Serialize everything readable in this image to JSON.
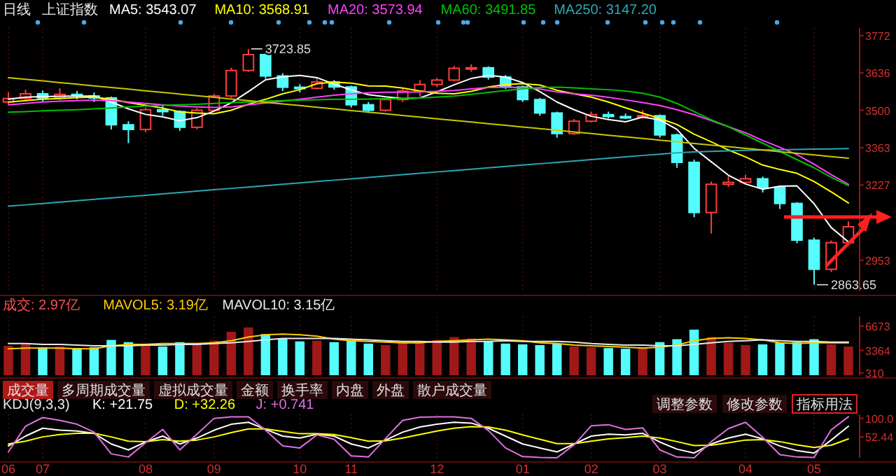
{
  "chart_data": [
    {
      "type": "candlestick",
      "title": "日线",
      "subtitle": "上证指数",
      "legend": "top left",
      "tick_labels": "y",
      "categories": [
        "06",
        null,
        "07",
        null,
        null,
        null,
        null,
        null,
        "08",
        null,
        null,
        null,
        "09",
        null,
        null,
        null,
        null,
        "10",
        null,
        null,
        "11",
        null,
        null,
        null,
        null,
        "12",
        null,
        null,
        null,
        null,
        "01",
        null,
        null,
        null,
        "02",
        null,
        null,
        null,
        "03",
        null,
        null,
        null,
        null,
        "04",
        null,
        null,
        null,
        "05",
        null,
        null
      ],
      "ohlc": [
        [
          3530,
          3565,
          3520,
          3543
        ],
        [
          3543,
          3575,
          3535,
          3560
        ],
        [
          3560,
          3572,
          3532,
          3545
        ],
        [
          3545,
          3580,
          3538,
          3558
        ],
        [
          3558,
          3570,
          3540,
          3552
        ],
        [
          3552,
          3565,
          3530,
          3545
        ],
        [
          3545,
          3550,
          3430,
          3447
        ],
        [
          3447,
          3460,
          3380,
          3430
        ],
        [
          3430,
          3510,
          3420,
          3502
        ],
        [
          3502,
          3520,
          3480,
          3495
        ],
        [
          3495,
          3500,
          3425,
          3438
        ],
        [
          3438,
          3508,
          3430,
          3500
        ],
        [
          3500,
          3560,
          3495,
          3552
        ],
        [
          3552,
          3655,
          3545,
          3645
        ],
        [
          3645,
          3723.85,
          3640,
          3703
        ],
        [
          3703,
          3710,
          3615,
          3625
        ],
        [
          3625,
          3635,
          3570,
          3584
        ],
        [
          3584,
          3595,
          3565,
          3580
        ],
        [
          3580,
          3615,
          3575,
          3603
        ],
        [
          3603,
          3610,
          3575,
          3585
        ],
        [
          3585,
          3590,
          3510,
          3520
        ],
        [
          3520,
          3530,
          3490,
          3500
        ],
        [
          3500,
          3545,
          3495,
          3539
        ],
        [
          3539,
          3578,
          3530,
          3570
        ],
        [
          3570,
          3610,
          3550,
          3594
        ],
        [
          3594,
          3618,
          3585,
          3610
        ],
        [
          3610,
          3662,
          3605,
          3653
        ],
        [
          3653,
          3668,
          3640,
          3655
        ],
        [
          3655,
          3660,
          3612,
          3621
        ],
        [
          3621,
          3628,
          3578,
          3585
        ],
        [
          3585,
          3590,
          3530,
          3539
        ],
        [
          3539,
          3545,
          3480,
          3490
        ],
        [
          3490,
          3495,
          3400,
          3415
        ],
        [
          3415,
          3468,
          3410,
          3460
        ],
        [
          3460,
          3495,
          3455,
          3484
        ],
        [
          3484,
          3495,
          3470,
          3477
        ],
        [
          3477,
          3488,
          3468,
          3475
        ],
        [
          3475,
          3500,
          3470,
          3480
        ],
        [
          3480,
          3485,
          3400,
          3410
        ],
        [
          3410,
          3415,
          3290,
          3310
        ],
        [
          3310,
          3320,
          3110,
          3127
        ],
        [
          3127,
          3240,
          3050,
          3230
        ],
        [
          3230,
          3260,
          3220,
          3237
        ],
        [
          3237,
          3265,
          3230,
          3250
        ],
        [
          3250,
          3258,
          3200,
          3218
        ],
        [
          3218,
          3225,
          3140,
          3160
        ],
        [
          3160,
          3165,
          3015,
          3026
        ],
        [
          3026,
          3035,
          2863.65,
          2920
        ],
        [
          2920,
          3025,
          2910,
          3017
        ],
        [
          3017,
          3095,
          3010,
          3075
        ]
      ],
      "colors": [
        "#ff3c3c",
        "#ff3c3c",
        "#54fcfc",
        "#ff3c3c",
        "#54fcfc",
        "#54fcfc",
        "#54fcfc",
        "#54fcfc",
        "#ff3c3c",
        "#54fcfc",
        "#54fcfc",
        "#ff3c3c",
        "#ff3c3c",
        "#ff3c3c",
        "#ff3c3c",
        "#54fcfc",
        "#54fcfc",
        "#54fcfc",
        "#ff3c3c",
        "#54fcfc",
        "#54fcfc",
        "#54fcfc",
        "#ff3c3c",
        "#ff3c3c",
        "#ff3c3c",
        "#ff3c3c",
        "#ff3c3c",
        "#ff3c3c",
        "#54fcfc",
        "#54fcfc",
        "#54fcfc",
        "#54fcfc",
        "#54fcfc",
        "#ff3c3c",
        "#ff3c3c",
        "#54fcfc",
        "#54fcfc",
        "#ff3c3c",
        "#54fcfc",
        "#54fcfc",
        "#54fcfc",
        "#ff3c3c",
        "#ff3c3c",
        "#ff3c3c",
        "#54fcfc",
        "#54fcfc",
        "#54fcfc",
        "#54fcfc",
        "#ff3c3c",
        "#ff3c3c"
      ],
      "series": [
        {
          "type": "line",
          "name": "MA5: 3543.07",
          "color": "#ffffff",
          "values": [
            3540,
            3548,
            3550,
            3551,
            3552,
            3552,
            3530,
            3505,
            3485,
            3476,
            3462,
            3473,
            3497,
            3527,
            3568,
            3611,
            3622,
            3627,
            3619,
            3595,
            3574,
            3557,
            3549,
            3543,
            3545,
            3567,
            3593,
            3616,
            3627,
            3621,
            3601,
            3568,
            3530,
            3502,
            3478,
            3466,
            3458,
            3475,
            3465,
            3430,
            3361,
            3312,
            3263,
            3231,
            3212,
            3223,
            3224,
            3159,
            3072,
            3020
          ]
        },
        {
          "type": "line",
          "name": "MA10: 3568.91",
          "color": "#ffff00",
          "values": [
            3530,
            3535,
            3540,
            3543,
            3546,
            3548,
            3540,
            3528,
            3518,
            3508,
            3494,
            3490,
            3487,
            3500,
            3522,
            3540,
            3560,
            3575,
            3597,
            3603,
            3599,
            3589,
            3588,
            3581,
            3570,
            3562,
            3560,
            3569,
            3585,
            3594,
            3597,
            3592,
            3573,
            3560,
            3548,
            3530,
            3509,
            3489,
            3470,
            3448,
            3413,
            3385,
            3355,
            3330,
            3300,
            3284,
            3270,
            3240,
            3202,
            3162
          ]
        },
        {
          "type": "line",
          "name": "MA20: 3573.94",
          "color": "#ff40ff",
          "values": [
            3520,
            3525,
            3530,
            3533,
            3535,
            3537,
            3535,
            3530,
            3525,
            3520,
            3515,
            3512,
            3510,
            3512,
            3520,
            3527,
            3533,
            3540,
            3548,
            3555,
            3560,
            3564,
            3566,
            3566,
            3567,
            3569,
            3572,
            3578,
            3583,
            3584,
            3583,
            3577,
            3567,
            3560,
            3555,
            3547,
            3538,
            3528,
            3517,
            3502,
            3484,
            3462,
            3440,
            3418,
            3390,
            3365,
            3338,
            3303,
            3265,
            3230
          ]
        },
        {
          "type": "line",
          "name": "MA60: 3491.85",
          "color": "#00c000",
          "values": [
            3493,
            3495,
            3498,
            3500,
            3502,
            3505,
            3508,
            3512,
            3515,
            3518,
            3520,
            3522,
            3525,
            3528,
            3530,
            3533,
            3535,
            3537,
            3538,
            3540,
            3540,
            3541,
            3542,
            3543,
            3545,
            3548,
            3552,
            3558,
            3565,
            3572,
            3578,
            3583,
            3584,
            3582,
            3578,
            3575,
            3570,
            3562,
            3548,
            3525,
            3495,
            3465,
            3440,
            3410,
            3380,
            3350,
            3320,
            3290,
            3255,
            3225
          ]
        },
        {
          "type": "line",
          "name": "MA250: 3147.20",
          "color": "#2aa8b4",
          "values": [
            3150,
            3155,
            3160,
            3165,
            3170,
            3175,
            3180,
            3185,
            3190,
            3195,
            3200,
            3205,
            3210,
            3215,
            3220,
            3225,
            3230,
            3235,
            3240,
            3245,
            3250,
            3255,
            3260,
            3265,
            3270,
            3275,
            3280,
            3285,
            3290,
            3295,
            3300,
            3305,
            3310,
            3315,
            3320,
            3325,
            3330,
            3335,
            3340,
            3345,
            3348,
            3350,
            3352,
            3354,
            3355,
            3356,
            3357,
            3358,
            3359,
            3360
          ]
        },
        {
          "type": "line",
          "color": "#c8c800",
          "values": [
            3619,
            3613,
            3607,
            3601,
            3595,
            3589,
            3583,
            3577,
            3571,
            3565,
            3559,
            3553,
            3547,
            3541,
            3535,
            3529,
            3523,
            3517,
            3511,
            3505,
            3499,
            3493,
            3487,
            3481,
            3475,
            3469,
            3463,
            3457,
            3451,
            3445,
            3439,
            3433,
            3427,
            3421,
            3415,
            3409,
            3403,
            3397,
            3391,
            3385,
            3379,
            3373,
            3367,
            3361,
            3355,
            3349,
            3343,
            3337,
            3331,
            3325
          ]
        }
      ],
      "grid": "x",
      "ylim": [
        2840,
        3800
      ],
      "yticks": [
        3772,
        3636,
        3500,
        3363,
        3227,
        2953
      ],
      "annotations": [
        "3723.85",
        "2863.65"
      ]
    },
    {
      "type": "bar",
      "title": "成交: 2.97亿",
      "legend": "top left",
      "tick_labels": "y",
      "categories": [
        "06",
        null,
        "07",
        null,
        null,
        null,
        null,
        null,
        "08",
        null,
        null,
        null,
        "09",
        null,
        null,
        null,
        null,
        "10",
        null,
        null,
        "11",
        null,
        null,
        null,
        null,
        "12",
        null,
        null,
        null,
        null,
        "01",
        null,
        null,
        null,
        "02",
        null,
        null,
        null,
        "03",
        null,
        null,
        null,
        null,
        "04",
        null,
        null,
        null,
        "05",
        null,
        null
      ],
      "series": [
        {
          "colors": [
            "#a01818",
            "#a01818",
            "#54fcfc",
            "#a01818",
            "#54fcfc",
            "#54fcfc",
            "#54fcfc",
            "#54fcfc",
            "#a01818",
            "#54fcfc",
            "#54fcfc",
            "#a01818",
            "#a01818",
            "#a01818",
            "#a01818",
            "#54fcfc",
            "#54fcfc",
            "#54fcfc",
            "#a01818",
            "#54fcfc",
            "#54fcfc",
            "#54fcfc",
            "#a01818",
            "#a01818",
            "#a01818",
            "#a01818",
            "#a01818",
            "#a01818",
            "#54fcfc",
            "#54fcfc",
            "#54fcfc",
            "#54fcfc",
            "#54fcfc",
            "#a01818",
            "#a01818",
            "#54fcfc",
            "#54fcfc",
            "#a01818",
            "#54fcfc",
            "#54fcfc",
            "#54fcfc",
            "#a01818",
            "#a01818",
            "#a01818",
            "#54fcfc",
            "#54fcfc",
            "#54fcfc",
            "#54fcfc",
            "#a01818",
            "#a01818"
          ],
          "values": [
            4000,
            4200,
            3800,
            3900,
            3700,
            3800,
            4800,
            4500,
            4300,
            3900,
            4500,
            4200,
            4700,
            5900,
            6500,
            5600,
            5000,
            4600,
            4700,
            4500,
            4800,
            4300,
            4100,
            4400,
            4600,
            4800,
            5200,
            5000,
            4600,
            4300,
            4200,
            4100,
            4300,
            3900,
            3800,
            3700,
            3600,
            3800,
            4500,
            4900,
            6200,
            5200,
            4400,
            4100,
            4200,
            4400,
            4500,
            4900,
            4200,
            3900
          ]
        },
        {
          "type": "line",
          "name": "MAVOL5: 3.19亿",
          "color": "#ffcc00",
          "values": [
            3600,
            3700,
            3700,
            3700,
            3600,
            3600,
            4000,
            4200,
            4200,
            4300,
            4300,
            4300,
            4400,
            4700,
            5200,
            5500,
            5600,
            5500,
            5300,
            4900,
            4700,
            4600,
            4500,
            4400,
            4400,
            4600,
            4700,
            4800,
            4900,
            4800,
            4700,
            4400,
            4300,
            4100,
            4000,
            3900,
            3800,
            3700,
            3800,
            4100,
            4700,
            5000,
            5100,
            5000,
            4800,
            4400,
            4300,
            4400,
            4400,
            4400
          ]
        },
        {
          "type": "line",
          "name": "MAVOL10: 3.15亿",
          "color": "#e8e8e8",
          "values": [
            4300,
            4300,
            4200,
            4200,
            4100,
            4000,
            4000,
            4000,
            4100,
            4100,
            4200,
            4200,
            4300,
            4400,
            4600,
            4800,
            5000,
            5000,
            5000,
            5000,
            4900,
            4800,
            4700,
            4600,
            4600,
            4500,
            4500,
            4600,
            4600,
            4700,
            4600,
            4600,
            4600,
            4500,
            4300,
            4200,
            4100,
            4100,
            4000,
            4000,
            4200,
            4400,
            4600,
            4700,
            4800,
            4700,
            4600,
            4600,
            4500,
            4500
          ]
        }
      ],
      "grid": "x",
      "ylim": [
        0,
        8000
      ],
      "yticks": [
        6673,
        3364,
        310
      ]
    },
    {
      "type": "line",
      "title": "KDJ(9,3,3)",
      "legend": "top left",
      "categories": [
        "06",
        null,
        "07",
        null,
        null,
        null,
        null,
        null,
        "08",
        null,
        null,
        null,
        "09",
        null,
        null,
        null,
        null,
        "10",
        null,
        null,
        "11",
        null,
        null,
        null,
        null,
        "12",
        null,
        null,
        null,
        null,
        "01",
        null,
        null,
        null,
        "02",
        null,
        null,
        null,
        "03",
        null,
        null,
        null,
        null,
        "04",
        null,
        null,
        null,
        "05",
        null,
        null
      ],
      "series": [
        {
          "name": "K: +21.75",
          "color": "#ffffff",
          "values": [
            30,
            55,
            75,
            70,
            68,
            62,
            35,
            20,
            40,
            55,
            35,
            50,
            70,
            85,
            90,
            72,
            55,
            50,
            60,
            55,
            35,
            25,
            45,
            65,
            78,
            85,
            90,
            88,
            75,
            55,
            35,
            25,
            15,
            35,
            55,
            60,
            58,
            62,
            40,
            22,
            12,
            35,
            50,
            60,
            48,
            30,
            18,
            12,
            45,
            80
          ]
        },
        {
          "name": "D: +32.26",
          "color": "#ffff00",
          "values": [
            35,
            42,
            53,
            59,
            62,
            62,
            53,
            42,
            41,
            46,
            42,
            45,
            53,
            64,
            73,
            73,
            67,
            61,
            61,
            59,
            51,
            42,
            43,
            50,
            59,
            68,
            75,
            79,
            78,
            70,
            58,
            47,
            36,
            36,
            42,
            48,
            51,
            55,
            50,
            41,
            31,
            32,
            38,
            45,
            46,
            41,
            33,
            26,
            32,
            48
          ]
        },
        {
          "name": "J: +0.741",
          "color": "#e070e0",
          "values": [
            15,
            80,
            102,
            95,
            85,
            65,
            10,
            2,
            38,
            72,
            20,
            60,
            100,
            104,
            104,
            70,
            30,
            25,
            58,
            47,
            5,
            2,
            49,
            95,
            103,
            104,
            104,
            100,
            69,
            25,
            3,
            1,
            0,
            33,
            81,
            84,
            72,
            76,
            20,
            2,
            0,
            41,
            74,
            90,
            52,
            8,
            2,
            1,
            71,
            104
          ]
        }
      ],
      "grid": "x",
      "ylim": [
        0,
        110
      ],
      "yticks": [
        {
          "value": 100,
          "label": "100.0"
        },
        52.44
      ],
      "annotations": [
        "成交量",
        "多周期成交量",
        "虚拟成交量",
        "金额",
        "换手率",
        "内盘",
        "外盘",
        "散户成交量",
        "调整参数",
        "修改参数",
        "指标用法"
      ]
    }
  ]
}
